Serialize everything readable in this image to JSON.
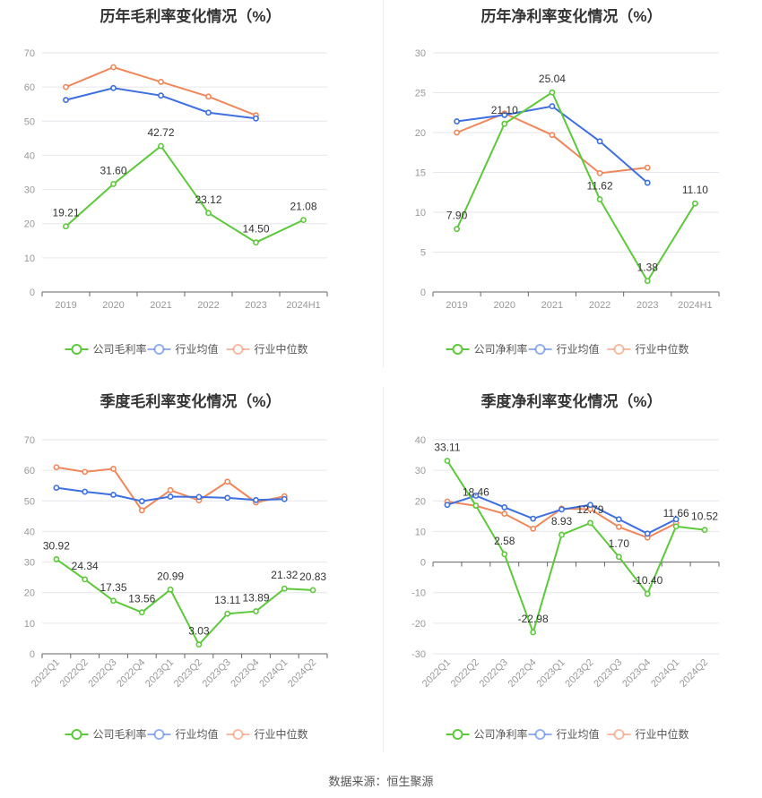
{
  "source": "数据来源：恒生聚源",
  "colors": {
    "company": "#5cc93a",
    "avg": "#3d6fe0",
    "median": "#f0875a",
    "grid": "#e6e6ec",
    "axis": "#999999",
    "label": "#333333"
  },
  "chart_data": [
    {
      "type": "line",
      "title": "历年毛利率变化情况（%）",
      "categories": [
        "2019",
        "2020",
        "2021",
        "2022",
        "2023",
        "2024H1"
      ],
      "ylim": [
        0,
        70
      ],
      "yticks": [
        0,
        10,
        20,
        30,
        40,
        50,
        60,
        70
      ],
      "grid": true,
      "legend_position": "bottom",
      "series": [
        {
          "name": "公司毛利率",
          "key": "company",
          "values": [
            19.21,
            31.6,
            42.72,
            23.12,
            14.5,
            21.08
          ],
          "labels": [
            "19.21",
            "31.60",
            "42.72",
            "23.12",
            "14.50",
            "21.08"
          ]
        },
        {
          "name": "行业均值",
          "key": "avg",
          "values": [
            56.2,
            59.7,
            57.5,
            52.5,
            50.8,
            null
          ]
        },
        {
          "name": "行业中位数",
          "key": "median",
          "values": [
            60.0,
            65.8,
            61.5,
            57.2,
            51.7,
            null
          ]
        }
      ]
    },
    {
      "type": "line",
      "title": "历年净利率变化情况（%）",
      "categories": [
        "2019",
        "2020",
        "2021",
        "2022",
        "2023",
        "2024H1"
      ],
      "ylim": [
        0,
        30
      ],
      "yticks": [
        0,
        5,
        10,
        15,
        20,
        25,
        30
      ],
      "grid": true,
      "legend_position": "bottom",
      "series": [
        {
          "name": "公司净利率",
          "key": "company",
          "values": [
            7.9,
            21.1,
            25.04,
            11.62,
            1.38,
            11.1
          ],
          "labels": [
            "7.90",
            "21.10",
            "25.04",
            "11.62",
            "1.38",
            "11.10"
          ]
        },
        {
          "name": "行业均值",
          "key": "avg",
          "values": [
            21.4,
            22.2,
            23.3,
            18.9,
            13.7,
            null
          ]
        },
        {
          "name": "行业中位数",
          "key": "median",
          "values": [
            20.0,
            22.4,
            19.7,
            14.9,
            15.6,
            null
          ]
        }
      ]
    },
    {
      "type": "line",
      "title": "季度毛利率变化情况（%）",
      "categories": [
        "2022Q1",
        "2022Q2",
        "2022Q3",
        "2022Q4",
        "2023Q1",
        "2023Q2",
        "2023Q3",
        "2023Q4",
        "2024Q1",
        "2024Q2"
      ],
      "ylim": [
        0,
        70
      ],
      "yticks": [
        0,
        10,
        20,
        30,
        40,
        50,
        60,
        70
      ],
      "grid": true,
      "legend_position": "bottom",
      "series": [
        {
          "name": "公司毛利率",
          "key": "company",
          "values": [
            30.92,
            24.34,
            17.35,
            13.56,
            20.99,
            3.03,
            13.11,
            13.89,
            21.32,
            20.83
          ],
          "labels": [
            "30.92",
            "24.34",
            "17.35",
            "13.56",
            "20.99",
            "3.03",
            "13.11",
            "13.89",
            "21.32",
            "20.83"
          ]
        },
        {
          "name": "行业均值",
          "key": "avg",
          "values": [
            54.3,
            53.0,
            52.0,
            49.9,
            51.4,
            51.3,
            51.0,
            50.3,
            50.6,
            null
          ]
        },
        {
          "name": "行业中位数",
          "key": "median",
          "values": [
            61.0,
            59.5,
            60.5,
            46.9,
            53.5,
            50.2,
            56.3,
            49.5,
            51.5,
            null
          ]
        }
      ]
    },
    {
      "type": "line",
      "title": "季度净利率变化情况（%）",
      "categories": [
        "2022Q1",
        "2022Q2",
        "2022Q3",
        "2022Q4",
        "2023Q1",
        "2023Q2",
        "2023Q3",
        "2023Q4",
        "2024Q1",
        "2024Q2"
      ],
      "ylim": [
        -30,
        40
      ],
      "yticks": [
        -30,
        -20,
        -10,
        0,
        10,
        20,
        30,
        40
      ],
      "grid": true,
      "legend_position": "bottom",
      "series": [
        {
          "name": "公司净利率",
          "key": "company",
          "values": [
            33.11,
            18.46,
            2.58,
            -22.98,
            8.93,
            12.79,
            1.7,
            -10.4,
            11.66,
            10.52
          ],
          "labels": [
            "33.11",
            "18.46",
            "2.58",
            "-22.98",
            "8.93",
            "12.79",
            "1.70",
            "-10.40",
            "11.66",
            "10.52"
          ]
        },
        {
          "name": "行业均值",
          "key": "avg",
          "values": [
            18.7,
            21.7,
            17.9,
            14.2,
            17.2,
            18.7,
            14.0,
            9.3,
            14.0,
            null
          ]
        },
        {
          "name": "行业中位数",
          "key": "median",
          "values": [
            19.8,
            18.4,
            15.8,
            10.9,
            17.5,
            17.3,
            11.5,
            8.0,
            12.7,
            null
          ]
        }
      ]
    }
  ]
}
